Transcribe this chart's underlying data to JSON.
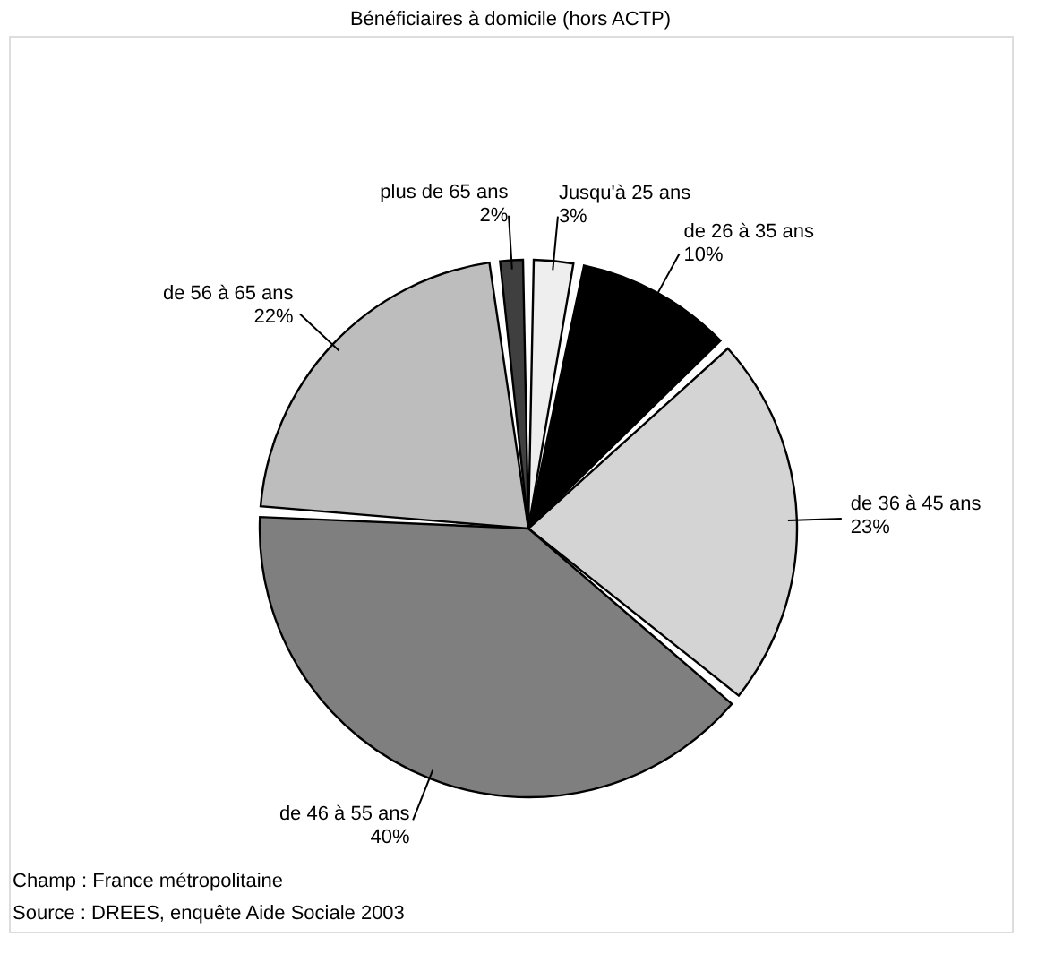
{
  "chart_data": {
    "type": "pie",
    "title": "Bénéficiaires à domicile (hors ACTP)",
    "categories": [
      "Jusqu'à 25 ans",
      "de 26 à 35 ans",
      "de 36 à 45 ans",
      "de 46 à 55 ans",
      "de 56 à 65 ans",
      "plus de 65 ans"
    ],
    "values": [
      3,
      10,
      23,
      40,
      22,
      2
    ],
    "value_labels": [
      "3%",
      "10%",
      "23%",
      "40%",
      "22%",
      "2%"
    ],
    "colors": [
      "#eeeeee",
      "#000000",
      "#d4d4d4",
      "#7f7f7f",
      "#bdbdbd",
      "#3f3f3f"
    ],
    "legend": false,
    "annotations": [
      "Champ : France métropolitaine",
      "Source : DREES, enquête Aide Sociale 2003"
    ]
  }
}
